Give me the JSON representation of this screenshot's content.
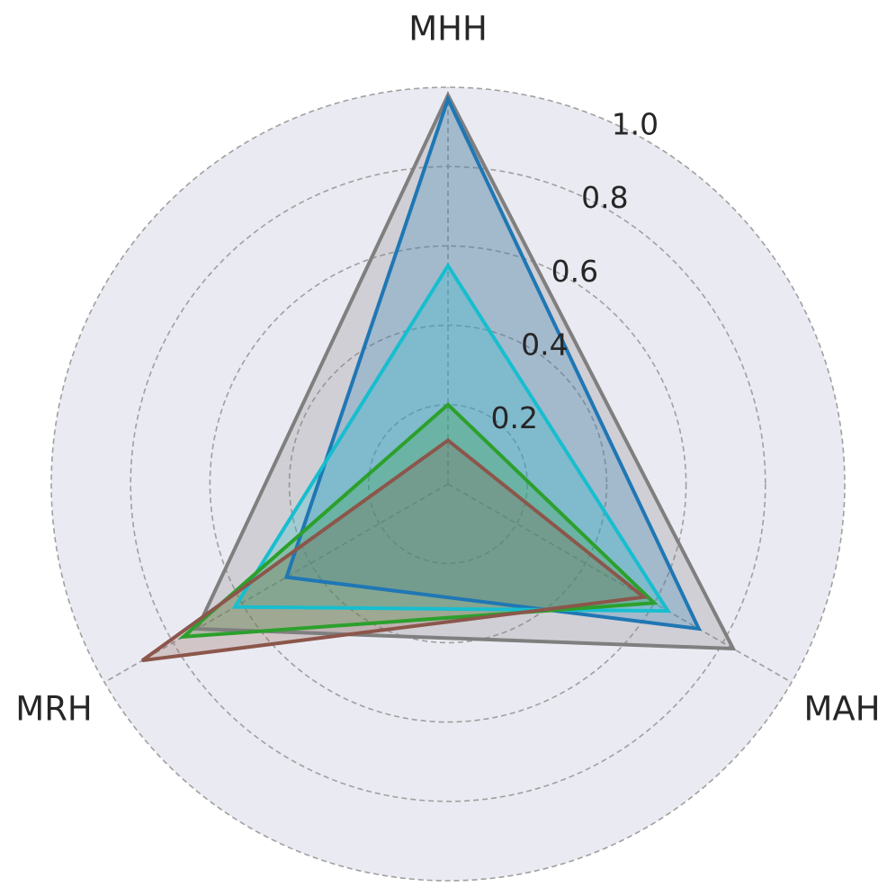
{
  "chart_data": {
    "type": "radar",
    "axes": [
      "MHH",
      "MAH",
      "MRH"
    ],
    "rlim": [
      0,
      1.0
    ],
    "r_ticks": [
      0.2,
      0.4,
      0.6,
      0.8,
      1.0
    ],
    "r_tick_labels": [
      "0.2",
      "0.4",
      "0.6",
      "0.8",
      "1.0"
    ],
    "grid": true,
    "series": [
      {
        "color": "#7f7f7f",
        "values": [
          0.98,
          0.83,
          0.73
        ]
      },
      {
        "color": "#1f77b4",
        "values": [
          0.97,
          0.73,
          0.47
        ]
      },
      {
        "color": "#17becf",
        "values": [
          0.55,
          0.64,
          0.62
        ]
      },
      {
        "color": "#2ca02c",
        "values": [
          0.2,
          0.6,
          0.77
        ]
      },
      {
        "color": "#8c564b",
        "values": [
          0.11,
          0.57,
          0.89
        ]
      }
    ],
    "colors": {
      "background": "#eaeaf2",
      "grid": "#a0a0a0",
      "text": "#262626"
    }
  }
}
